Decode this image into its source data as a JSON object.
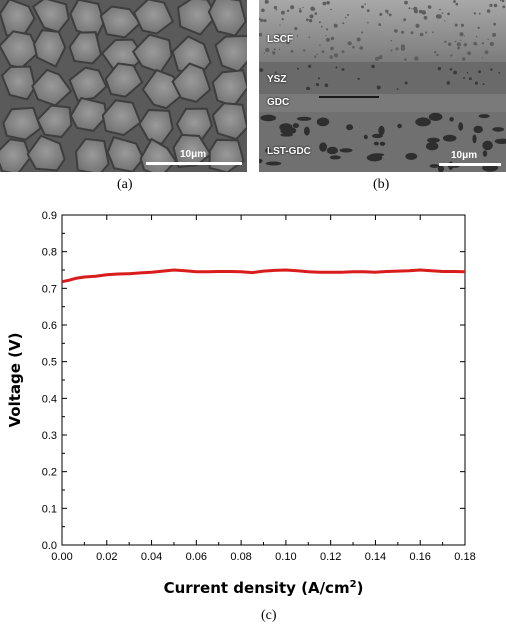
{
  "panels": {
    "a": {
      "caption": "(a)",
      "scale_label": "10μm"
    },
    "b": {
      "caption": "(b)",
      "scale_label": "10μm",
      "layers": [
        "LSCF",
        "YSZ",
        "GDC",
        "LST-GDC"
      ]
    },
    "c": {
      "caption": "(c)"
    }
  },
  "chart_data": {
    "type": "line",
    "title": "",
    "xlabel": "Current density (A/cm",
    "xlabel_superscript": "2",
    "xlabel_suffix": ")",
    "ylabel": "Voltage (V)",
    "xlim": [
      0.0,
      0.18
    ],
    "ylim": [
      0.0,
      0.9
    ],
    "x_ticks": [
      "0.00",
      "0.02",
      "0.04",
      "0.06",
      "0.08",
      "0.10",
      "0.12",
      "0.14",
      "0.16",
      "0.18"
    ],
    "y_ticks": [
      "0.0",
      "0.1",
      "0.2",
      "0.3",
      "0.4",
      "0.5",
      "0.6",
      "0.7",
      "0.8",
      "0.9"
    ],
    "grid": false,
    "series_color": "#d91c1c",
    "series": [
      {
        "x": [
          0.0,
          0.003,
          0.006,
          0.01,
          0.015,
          0.02,
          0.025,
          0.03,
          0.035,
          0.04,
          0.045,
          0.05,
          0.055,
          0.06,
          0.065,
          0.07,
          0.075,
          0.08,
          0.085,
          0.09,
          0.095,
          0.1,
          0.105,
          0.11,
          0.115,
          0.12,
          0.125,
          0.13,
          0.135,
          0.14,
          0.145,
          0.15,
          0.155,
          0.16,
          0.165,
          0.17,
          0.175,
          0.18
        ],
        "y": [
          0.718,
          0.722,
          0.727,
          0.731,
          0.733,
          0.737,
          0.739,
          0.74,
          0.742,
          0.744,
          0.747,
          0.75,
          0.748,
          0.745,
          0.745,
          0.746,
          0.746,
          0.745,
          0.743,
          0.747,
          0.749,
          0.75,
          0.748,
          0.745,
          0.744,
          0.744,
          0.744,
          0.745,
          0.745,
          0.744,
          0.746,
          0.747,
          0.748,
          0.75,
          0.748,
          0.746,
          0.746,
          0.745
        ]
      }
    ]
  }
}
